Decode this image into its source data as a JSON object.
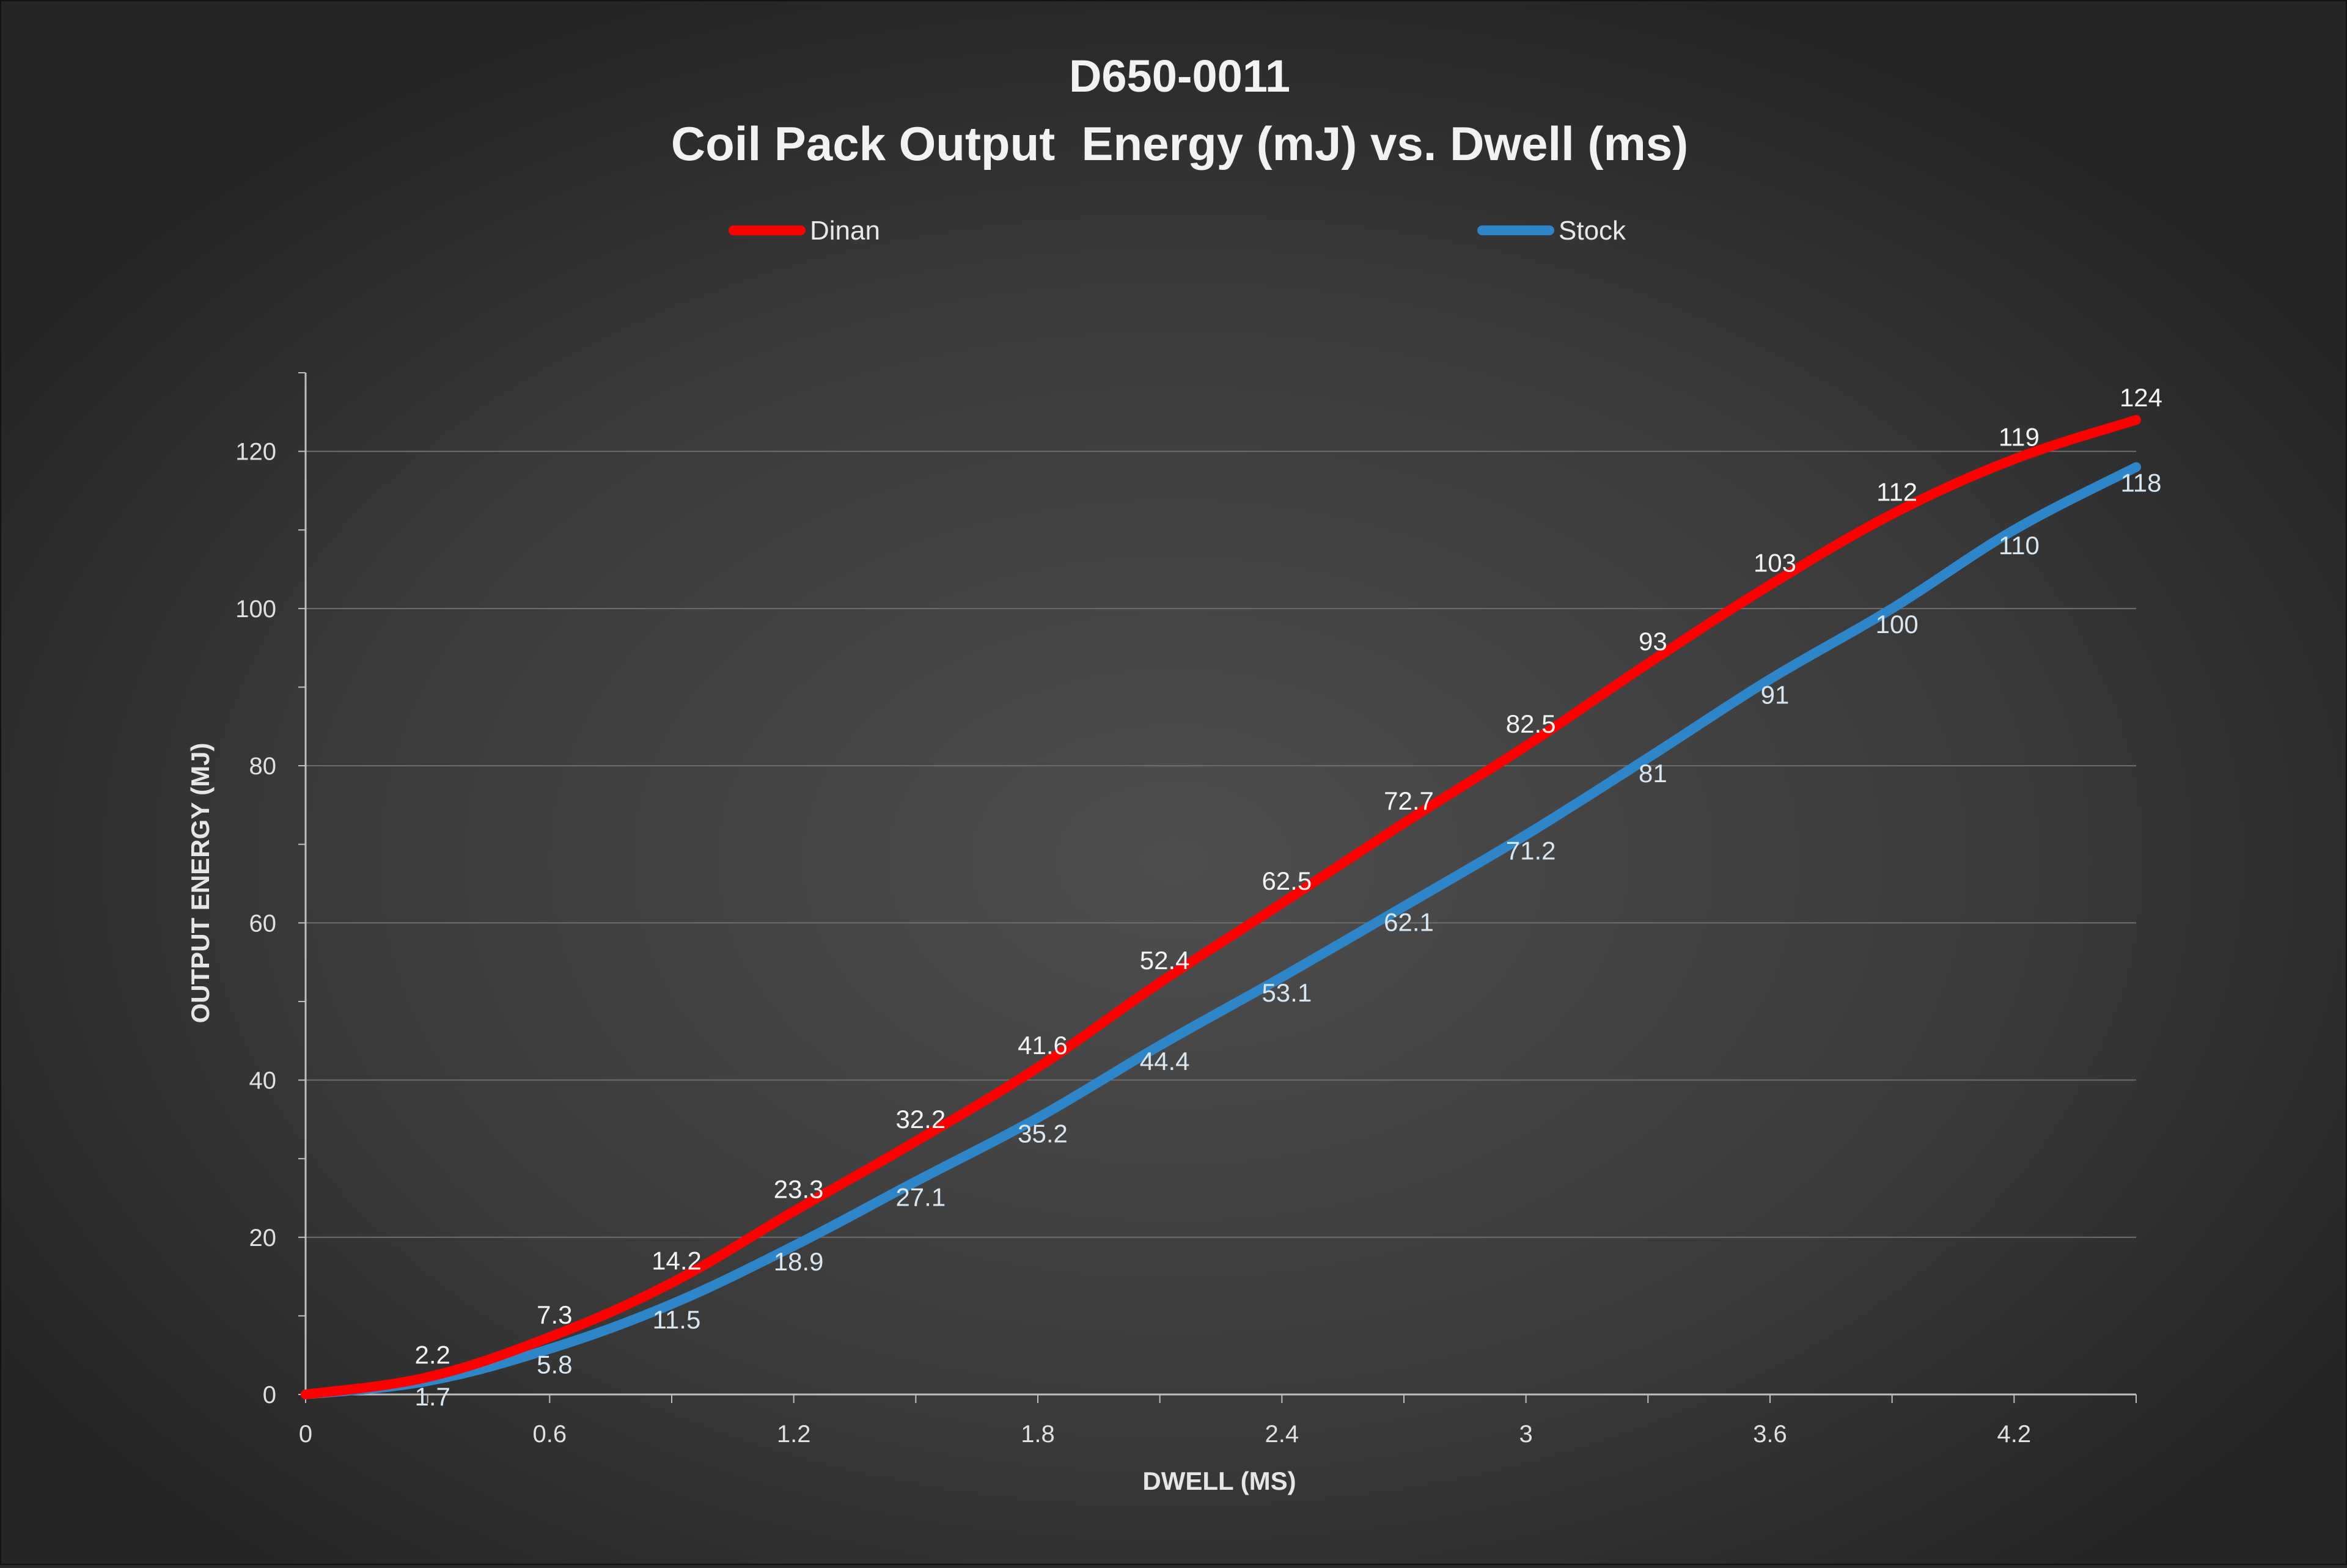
{
  "chart_data": {
    "type": "line",
    "title": "D650-0011",
    "subtitle": "Coil Pack Output  Energy (mJ) vs. Dwell (ms)",
    "xlabel": "DWELL (MS)",
    "ylabel": "OUTPUT ENERGY (MJ)",
    "xlim": [
      0,
      4.5
    ],
    "ylim": [
      0,
      130
    ],
    "x_ticks": [
      "0",
      "0.6",
      "1.2",
      "1.8",
      "2.4",
      "3",
      "3.6",
      "4.2"
    ],
    "y_ticks": [
      "0",
      "20",
      "40",
      "60",
      "80",
      "100",
      "120"
    ],
    "x": [
      0,
      0.3,
      0.6,
      0.9,
      1.2,
      1.5,
      1.8,
      2.1,
      2.4,
      2.7,
      3.0,
      3.3,
      3.6,
      3.9,
      4.2,
      4.5
    ],
    "legend_position": "top",
    "grid": true,
    "series": [
      {
        "name": "Dinan",
        "color": "#ff0000",
        "values": [
          0,
          2.2,
          7.3,
          14.2,
          23.3,
          32.2,
          41.6,
          52.4,
          62.5,
          72.7,
          82.5,
          93,
          103,
          112,
          119,
          124
        ],
        "labels": [
          "",
          "2.2",
          "7.3",
          "14.2",
          "23.3",
          "32.2",
          "41.6",
          "52.4",
          "62.5",
          "72.7",
          "82.5",
          "93",
          "103",
          "112",
          "119",
          "124"
        ]
      },
      {
        "name": "Stock",
        "color": "#2e86c8",
        "values": [
          0,
          1.7,
          5.8,
          11.5,
          18.9,
          27.1,
          35.2,
          44.4,
          53.1,
          62.1,
          71.2,
          81,
          91,
          100,
          110,
          118
        ],
        "labels": [
          "",
          "1.7",
          "5.8",
          "11.5",
          "18.9",
          "27.1",
          "35.2",
          "44.4",
          "53.1",
          "62.1",
          "71.2",
          "81",
          "91",
          "100",
          "110",
          "118"
        ]
      }
    ]
  }
}
